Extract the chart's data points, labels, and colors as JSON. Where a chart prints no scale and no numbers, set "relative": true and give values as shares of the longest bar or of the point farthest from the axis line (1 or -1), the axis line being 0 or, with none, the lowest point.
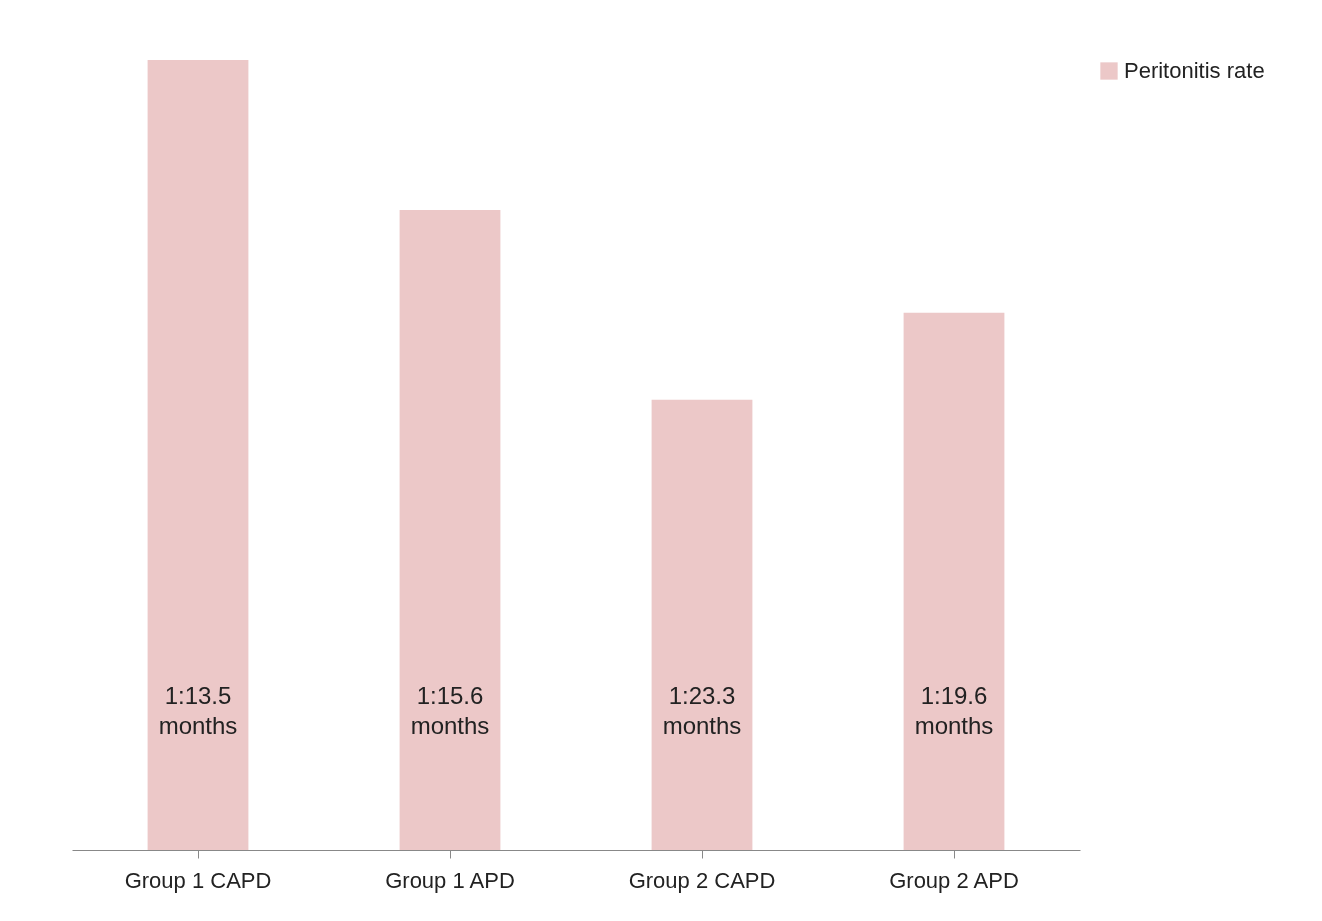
{
  "chart_data": {
    "type": "bar",
    "relative": true,
    "categories": [
      "Group 1 CAPD",
      "Group 1 APD",
      "Group 2 CAPD",
      "Group 2 APD"
    ],
    "series": [
      {
        "name": "Peritonitis rate",
        "color": "#ecc8c8",
        "values": [
          1,
          0.81,
          0.57,
          0.68
        ]
      }
    ],
    "value_labels": [
      "1:13.5\nmonths",
      "1:15.6\nmonths",
      "1:23.3\nmonths",
      "1:19.6\nmonths"
    ],
    "legend": "right"
  }
}
